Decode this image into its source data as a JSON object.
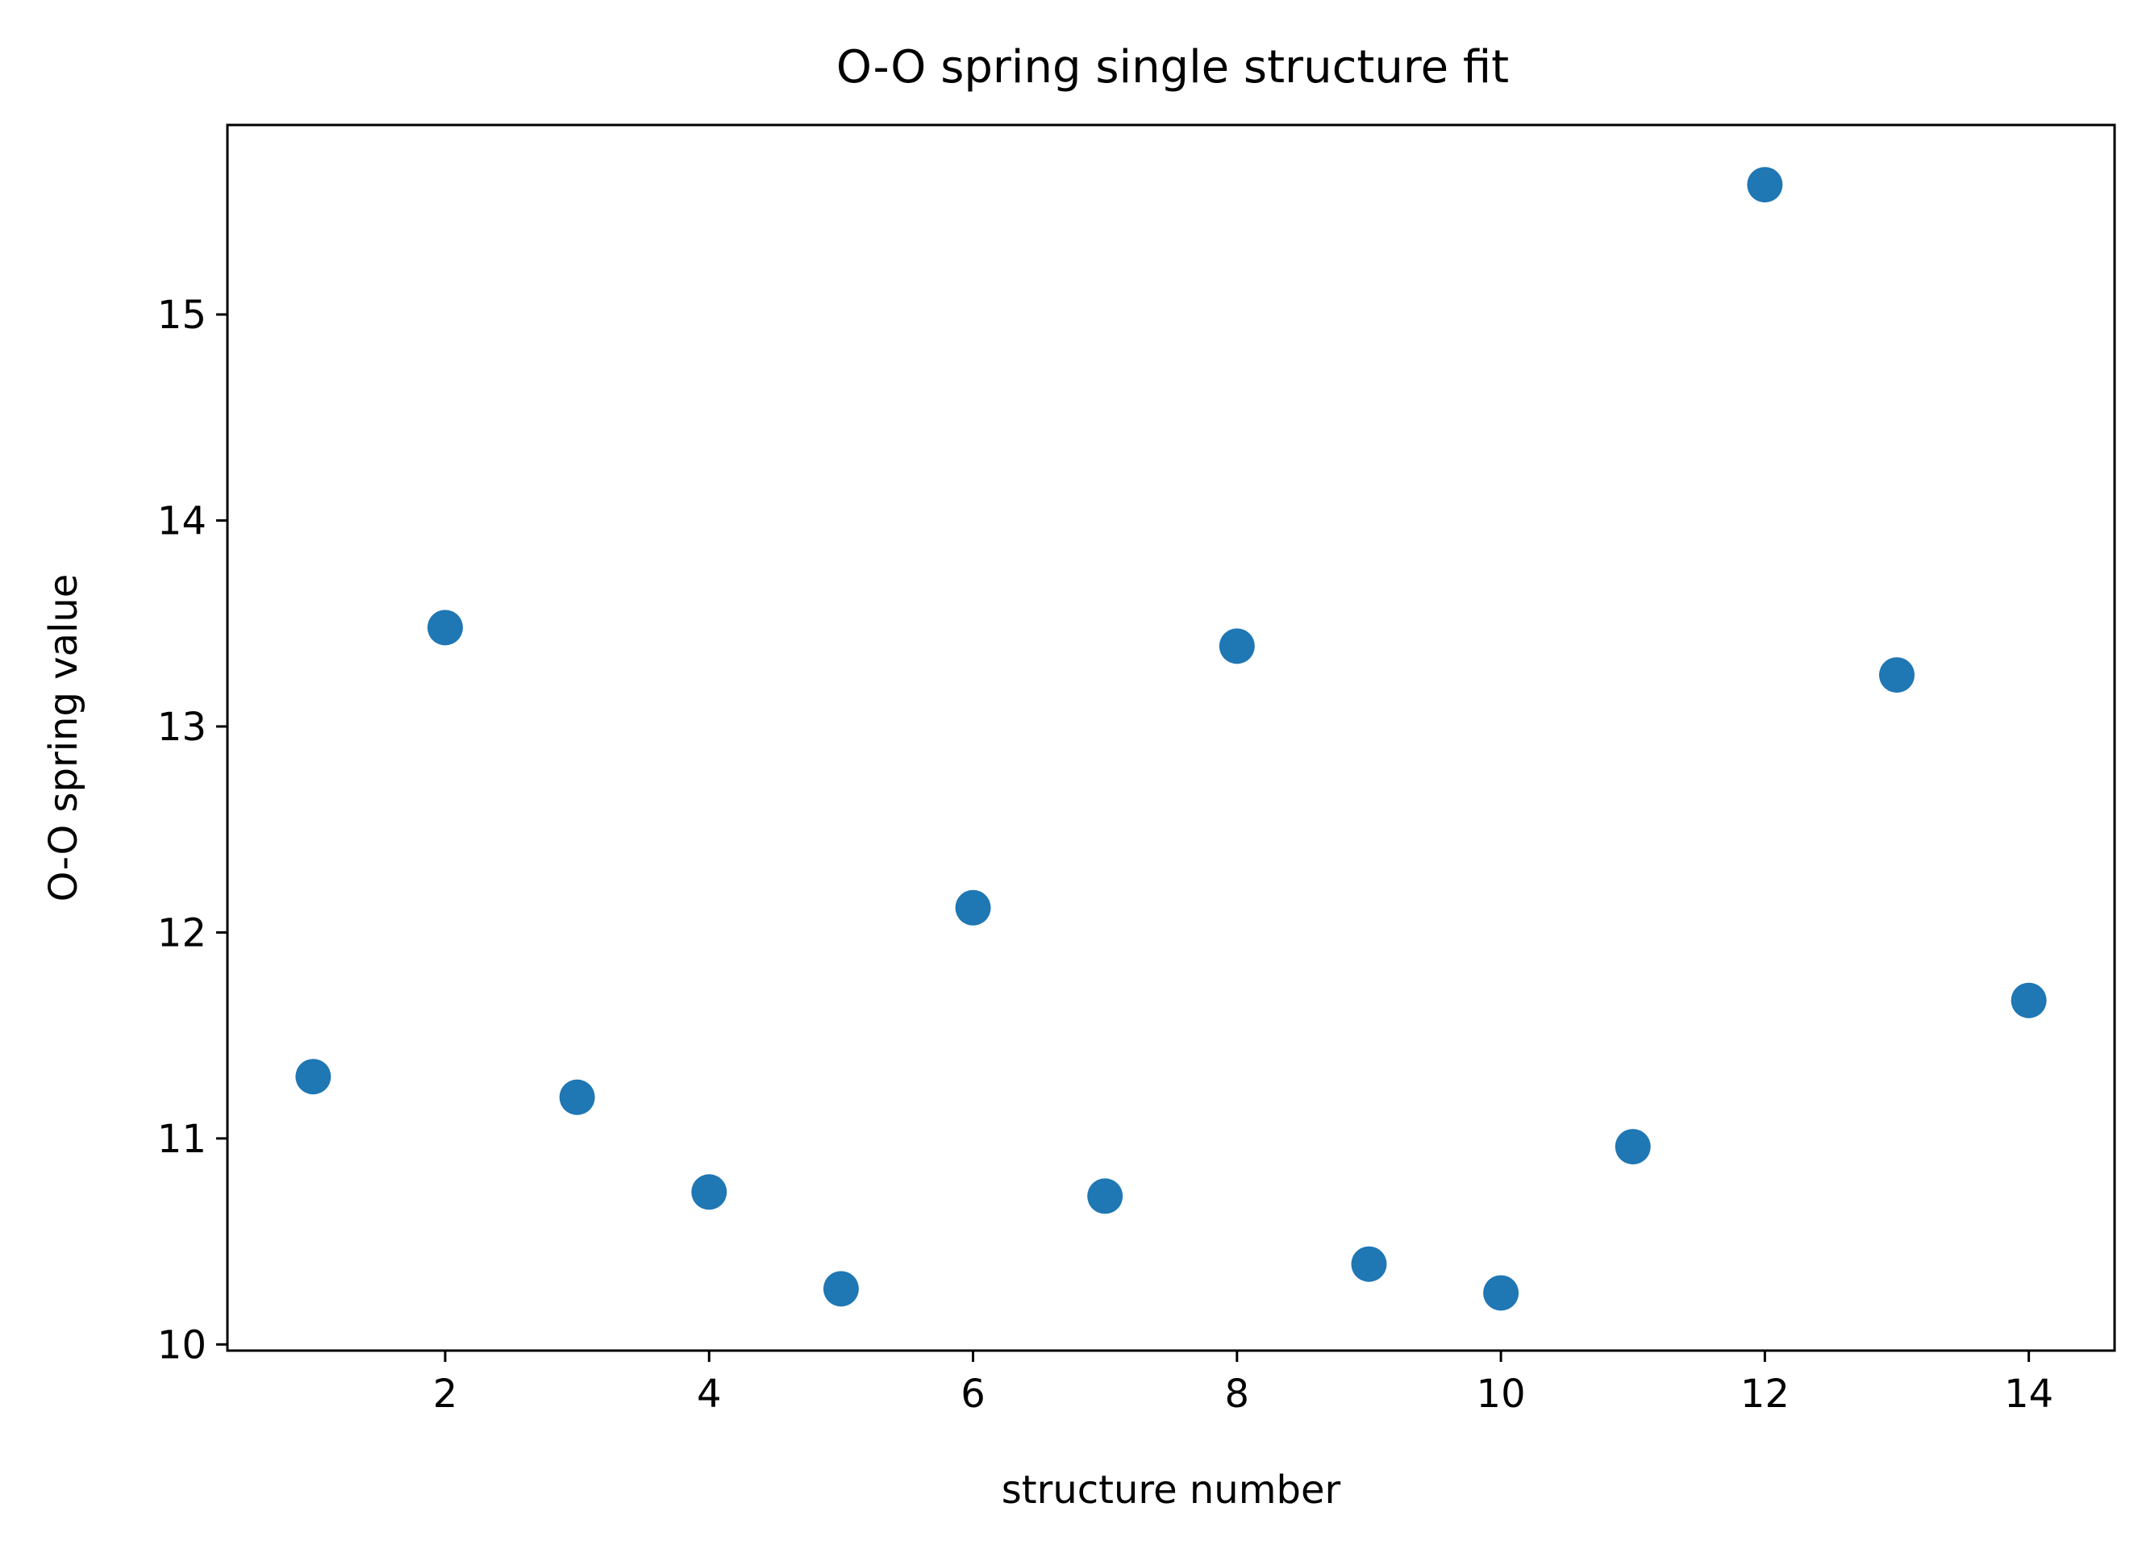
{
  "chart_data": {
    "type": "scatter",
    "title": "O-O spring single structure fit",
    "xlabel": "structure number",
    "ylabel": "O-O spring value",
    "xlim": [
      0.35,
      14.65
    ],
    "ylim": [
      9.97,
      15.92
    ],
    "xticks": [
      2,
      4,
      6,
      8,
      10,
      12,
      14
    ],
    "yticks": [
      10,
      11,
      12,
      13,
      14,
      15
    ],
    "grid": false,
    "color": "#1f77b4",
    "x": [
      1,
      2,
      3,
      4,
      5,
      6,
      7,
      8,
      9,
      10,
      11,
      12,
      13,
      14
    ],
    "y": [
      11.3,
      13.48,
      11.2,
      10.74,
      10.27,
      12.12,
      10.72,
      13.39,
      10.39,
      10.25,
      10.96,
      15.63,
      13.25,
      11.67
    ]
  }
}
